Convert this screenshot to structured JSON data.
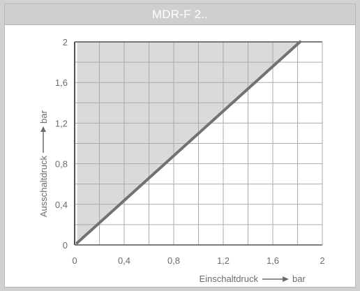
{
  "header": {
    "title": "MDR-F 2.."
  },
  "chart_data": {
    "type": "area",
    "title": "MDR-F 2..",
    "xlabel": "Einschaltdruck",
    "xunit": "bar",
    "ylabel": "Ausschaltdruck",
    "yunit": "bar",
    "xlim": [
      0,
      2
    ],
    "ylim": [
      0,
      2
    ],
    "xticks": [
      "0",
      "0,4",
      "0,8",
      "1,2",
      "1,6",
      "2"
    ],
    "yticks": [
      "0",
      "0,4",
      "0,8",
      "1,2",
      "1,6",
      "2"
    ],
    "grid": true,
    "grid_step": 0.2,
    "series": [
      {
        "x": [
          0.02,
          1.82
        ],
        "y": [
          0.02,
          2.0
        ]
      }
    ],
    "shaded_region": {
      "polygon": [
        [
          0.02,
          0.02
        ],
        [
          1.82,
          2.0
        ],
        [
          0.02,
          2.0
        ]
      ]
    },
    "colors": {
      "line": "#707274",
      "fill": "#d8dadc",
      "grid": "#a9abad",
      "frame": "#505254",
      "text": "#6a6c6e"
    }
  }
}
